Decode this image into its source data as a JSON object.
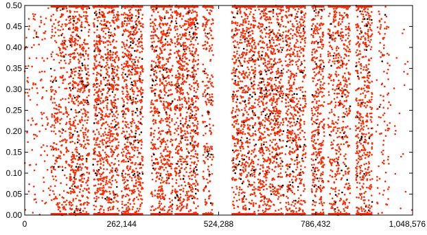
{
  "chart_data": {
    "type": "scatter",
    "title": "",
    "xlabel": "",
    "ylabel": "",
    "xlim": [
      0,
      1048576
    ],
    "ylim": [
      0,
      0.5
    ],
    "x_ticks": [
      0,
      262144,
      524288,
      786432,
      1048576
    ],
    "x_tick_labels": [
      "0",
      "262,144",
      "524,288",
      "786,432",
      "1,048,576"
    ],
    "y_ticks": [
      0,
      0.05,
      0.1,
      0.15,
      0.2,
      0.25,
      0.3,
      0.35,
      0.4,
      0.45,
      0.5
    ],
    "y_tick_labels": [
      "0.00",
      "0.05",
      "0.10",
      "0.15",
      "0.20",
      "0.25",
      "0.30",
      "0.35",
      "0.40",
      "0.45",
      "0.50"
    ],
    "grid": false,
    "legend": "none",
    "colors": {
      "primary_series": "#ff2a00",
      "secondary_series": "#000000",
      "axis": "#000000"
    },
    "series": [
      {
        "color": "#ff2a00",
        "description_of_density": "dense vertical bands of points spanning 0.00 to 0.50",
        "bands": [
          {
            "x_start": 0,
            "x_end": 70000,
            "density": 0.15
          },
          {
            "x_start": 70000,
            "x_end": 115000,
            "density": 0.55
          },
          {
            "x_start": 118000,
            "x_end": 175000,
            "density": 0.9
          },
          {
            "x_start": 185000,
            "x_end": 255000,
            "density": 0.95
          },
          {
            "x_start": 262000,
            "x_end": 320000,
            "density": 0.95
          },
          {
            "x_start": 340000,
            "x_end": 400000,
            "density": 0.9
          },
          {
            "x_start": 405000,
            "x_end": 470000,
            "density": 0.95
          },
          {
            "x_start": 480000,
            "x_end": 510000,
            "density": 0.6
          },
          {
            "x_start": 560000,
            "x_end": 625000,
            "density": 0.9
          },
          {
            "x_start": 630000,
            "x_end": 700000,
            "density": 0.95
          },
          {
            "x_start": 705000,
            "x_end": 760000,
            "density": 0.85
          },
          {
            "x_start": 775000,
            "x_end": 810000,
            "density": 0.9
          },
          {
            "x_start": 820000,
            "x_end": 880000,
            "density": 0.7
          },
          {
            "x_start": 895000,
            "x_end": 940000,
            "density": 0.85
          },
          {
            "x_start": 950000,
            "x_end": 985000,
            "density": 0.25
          },
          {
            "x_start": 985000,
            "x_end": 1048576,
            "density": 0.03
          }
        ]
      },
      {
        "color": "#000000",
        "description_of_density": "sparse black points interleaved inside the red bands",
        "fraction_of_points": 0.08
      }
    ]
  }
}
